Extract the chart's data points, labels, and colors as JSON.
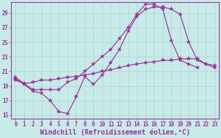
{
  "title": "",
  "xlabel": "Windchill (Refroidissement éolien,°C)",
  "ylabel": "",
  "bg_color": "#c8eae8",
  "line_color": "#993399",
  "marker": "*",
  "marker_size": 4,
  "xlim": [
    -0.5,
    23.5
  ],
  "ylim": [
    14.5,
    30.5
  ],
  "xticks": [
    0,
    1,
    2,
    3,
    4,
    5,
    6,
    7,
    8,
    9,
    10,
    11,
    12,
    13,
    14,
    15,
    16,
    17,
    18,
    19,
    20,
    21,
    22,
    23
  ],
  "yticks": [
    15,
    17,
    19,
    21,
    23,
    25,
    27,
    29
  ],
  "series": [
    {
      "x": [
        0,
        1,
        2,
        3,
        4,
        5,
        6,
        7,
        8,
        9,
        10,
        11,
        12,
        13,
        14,
        15,
        16,
        17,
        18,
        19,
        20,
        21,
        22,
        23
      ],
      "y": [
        20.0,
        19.2,
        18.3,
        18.0,
        17.0,
        15.5,
        15.2,
        17.5,
        20.3,
        19.2,
        20.5,
        22.2,
        24.0,
        26.5,
        28.5,
        29.5,
        29.8,
        29.8,
        29.5,
        28.8,
        25.0,
        22.5,
        22.0,
        21.5
      ]
    },
    {
      "x": [
        0,
        1,
        2,
        3,
        4,
        5,
        6,
        7,
        8,
        9,
        10,
        11,
        12,
        13,
        14,
        15,
        16,
        17,
        18,
        19,
        20,
        21,
        22,
        23
      ],
      "y": [
        20.2,
        19.3,
        18.5,
        18.5,
        18.5,
        18.5,
        19.5,
        20.0,
        21.0,
        22.0,
        23.0,
        24.0,
        25.5,
        27.0,
        28.8,
        30.2,
        30.2,
        29.5,
        25.2,
        22.5,
        22.0,
        21.5,
        null,
        null
      ]
    },
    {
      "x": [
        0,
        1,
        2,
        3,
        4,
        5,
        6,
        7,
        8,
        9,
        10,
        11,
        12,
        13,
        14,
        15,
        16,
        17,
        18,
        19,
        20,
        21,
        22,
        23
      ],
      "y": [
        19.8,
        19.3,
        19.5,
        19.8,
        19.8,
        20.0,
        20.2,
        20.3,
        20.5,
        20.7,
        21.0,
        21.2,
        21.5,
        21.8,
        22.0,
        22.2,
        22.3,
        22.5,
        22.5,
        22.7,
        22.7,
        22.7,
        22.0,
        21.8
      ]
    }
  ],
  "grid_color": "#aad5d0",
  "tick_label_fontsize": 5.5,
  "xlabel_fontsize": 7.0
}
